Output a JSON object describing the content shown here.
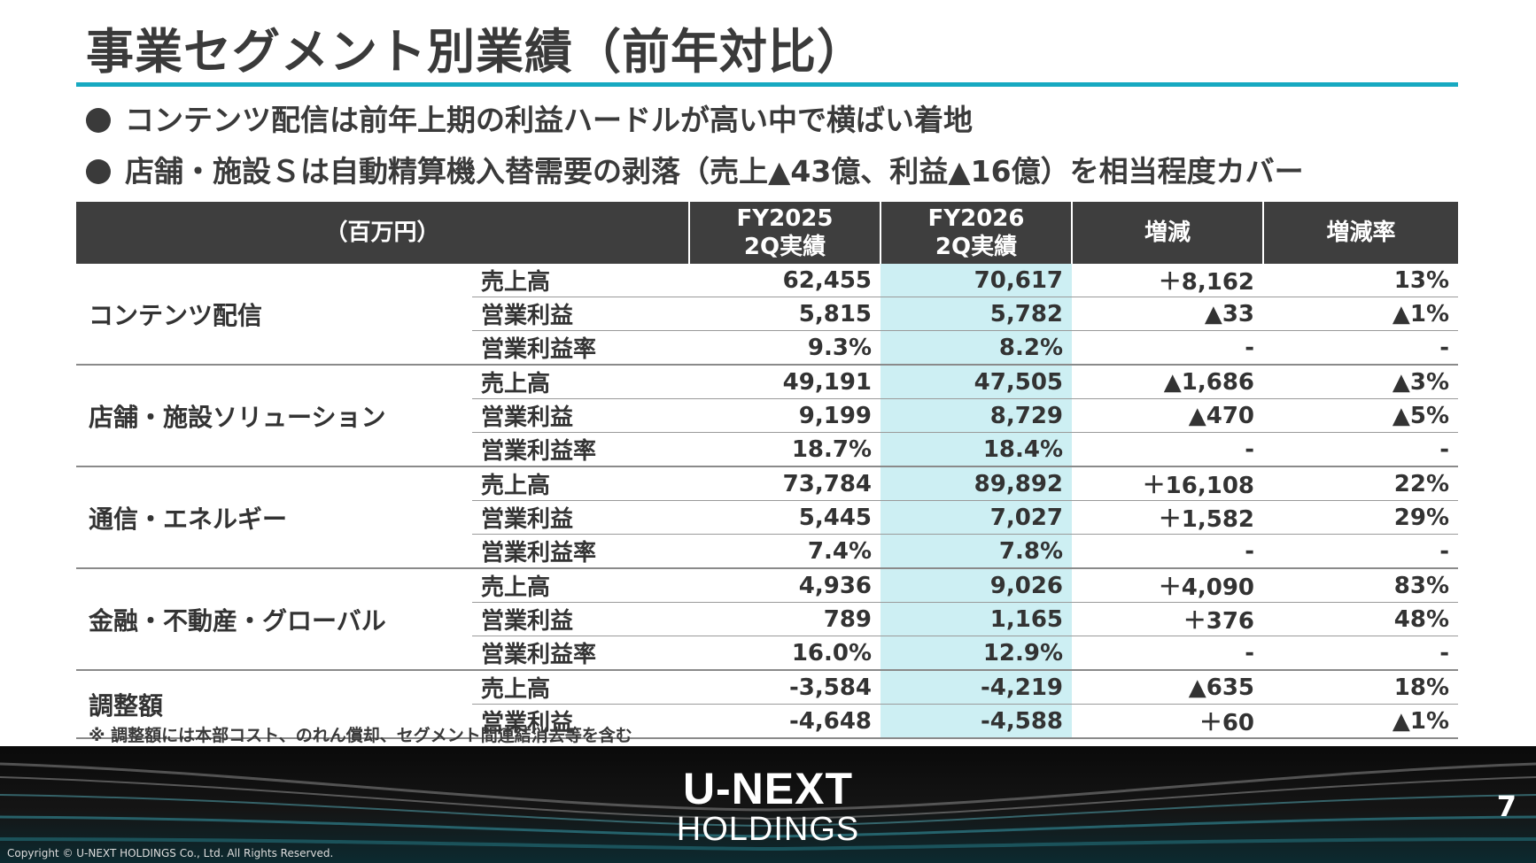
{
  "title": "事業セグメント別業績（前年対比）",
  "bullets": [
    "コンテンツ配信は前年上期の利益ハードルが高い中で横ばい着地",
    "店舗・施設Ｓは自動精算機入替需要の剥落（売上▲43億、利益▲16億）を相当程度カバー"
  ],
  "table": {
    "header": {
      "unit": "（百万円）",
      "fy2025_line1": "FY2025",
      "fy2025_line2": "2Q実績",
      "fy2026_line1": "FY2026",
      "fy2026_line2": "2Q実績",
      "change": "増減",
      "change_rate": "増減率"
    },
    "segments": [
      {
        "name": "コンテンツ配信",
        "rows": [
          {
            "metric": "売上高",
            "fy2025": "62,455",
            "fy2026": "70,617",
            "change": "＋8,162",
            "rate": "13%"
          },
          {
            "metric": "営業利益",
            "fy2025": "5,815",
            "fy2026": "5,782",
            "change": "▲33",
            "rate": "▲1%"
          },
          {
            "metric": "営業利益率",
            "fy2025": "9.3%",
            "fy2026": "8.2%",
            "change": "-",
            "rate": "-"
          }
        ]
      },
      {
        "name": "店舗・施設ソリューション",
        "rows": [
          {
            "metric": "売上高",
            "fy2025": "49,191",
            "fy2026": "47,505",
            "change": "▲1,686",
            "rate": "▲3%"
          },
          {
            "metric": "営業利益",
            "fy2025": "9,199",
            "fy2026": "8,729",
            "change": "▲470",
            "rate": "▲5%"
          },
          {
            "metric": "営業利益率",
            "fy2025": "18.7%",
            "fy2026": "18.4%",
            "change": "-",
            "rate": "-"
          }
        ]
      },
      {
        "name": "通信・エネルギー",
        "rows": [
          {
            "metric": "売上高",
            "fy2025": "73,784",
            "fy2026": "89,892",
            "change": "＋16,108",
            "rate": "22%"
          },
          {
            "metric": "営業利益",
            "fy2025": "5,445",
            "fy2026": "7,027",
            "change": "＋1,582",
            "rate": "29%"
          },
          {
            "metric": "営業利益率",
            "fy2025": "7.4%",
            "fy2026": "7.8%",
            "change": "-",
            "rate": "-"
          }
        ]
      },
      {
        "name": "金融・不動産・グローバル",
        "rows": [
          {
            "metric": "売上高",
            "fy2025": "4,936",
            "fy2026": "9,026",
            "change": "＋4,090",
            "rate": "83%"
          },
          {
            "metric": "営業利益",
            "fy2025": "789",
            "fy2026": "1,165",
            "change": "＋376",
            "rate": "48%"
          },
          {
            "metric": "営業利益率",
            "fy2025": "16.0%",
            "fy2026": "12.9%",
            "change": "-",
            "rate": "-"
          }
        ]
      },
      {
        "name": "調整額",
        "rows": [
          {
            "metric": "売上高",
            "fy2025": "-3,584",
            "fy2026": "-4,219",
            "change": "▲635",
            "rate": "18%"
          },
          {
            "metric": "営業利益",
            "fy2025": "-4,648",
            "fy2026": "-4,588",
            "change": "＋60",
            "rate": "▲1%"
          }
        ]
      }
    ]
  },
  "note": "※ 調整額には本部コスト、のれん償却、セグメント間連結消去等を含む",
  "footer": {
    "logo_line1": "U-NEXT",
    "logo_line2": "HOLDINGS",
    "page_number": "7",
    "copyright": "Copyright © U-NEXT HOLDINGS Co., Ltd. All Rights Reserved."
  },
  "colors": {
    "accent": "#17a9c1",
    "highlight_column": "#cdeff3",
    "header_bg": "#3e3e3e"
  }
}
